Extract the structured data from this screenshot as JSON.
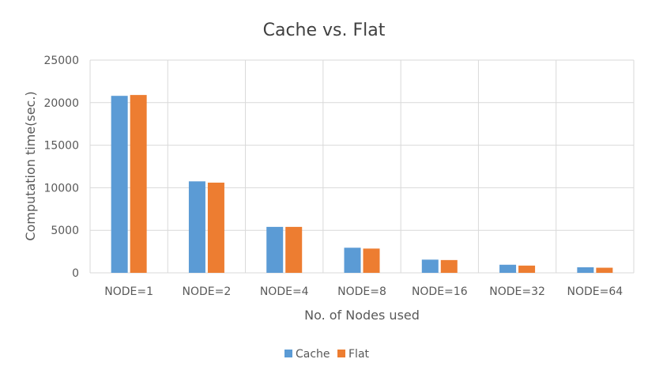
{
  "chart_data": {
    "type": "bar",
    "title": "Cache vs. Flat",
    "xlabel": "No. of Nodes used",
    "ylabel": "Computation time(sec.)",
    "categories": [
      "NODE=1",
      "NODE=2",
      "NODE=4",
      "NODE=8",
      "NODE=16",
      "NODE=32",
      "NODE=64"
    ],
    "series": [
      {
        "name": "Cache",
        "color": "#5B9BD5",
        "values": [
          20800,
          10750,
          5400,
          2950,
          1550,
          950,
          650
        ]
      },
      {
        "name": "Flat",
        "color": "#ED7D31",
        "values": [
          20900,
          10600,
          5400,
          2850,
          1500,
          850,
          600
        ]
      }
    ],
    "ylim": [
      0,
      25000
    ],
    "yticks": [
      "0",
      "5000",
      "10000",
      "15000",
      "20000",
      "25000"
    ],
    "grid": true,
    "legend_position": "bottom"
  }
}
